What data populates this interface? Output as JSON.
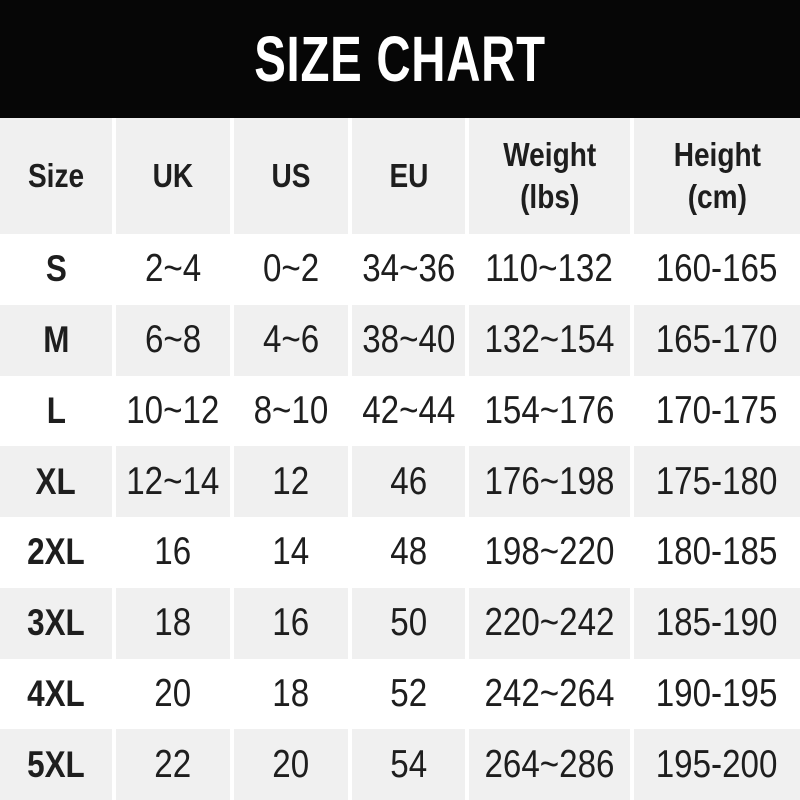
{
  "title": "SIZE CHART",
  "colors": {
    "title_bar_bg": "#060606",
    "title_text": "#ffffff",
    "row_gray": "#f0f0f0",
    "row_white": "#ffffff",
    "cell_text": "#1e1e1e",
    "column_separator": "#ffffff"
  },
  "chart_data": {
    "type": "table",
    "title": "SIZE CHART",
    "columns": [
      "Size",
      "UK",
      "US",
      "EU",
      "Weight (lbs)",
      "Height (cm)"
    ],
    "column_header_lines": [
      [
        "Size"
      ],
      [
        "UK"
      ],
      [
        "US"
      ],
      [
        "EU"
      ],
      [
        "Weight",
        "(lbs)"
      ],
      [
        "Height",
        "(cm)"
      ]
    ],
    "column_keys": [
      "size",
      "uk",
      "us",
      "eu",
      "weight-lbs",
      "height-cm"
    ],
    "rows": [
      [
        "S",
        "2~4",
        "0~2",
        "34~36",
        "110~132",
        "160-165"
      ],
      [
        "M",
        "6~8",
        "4~6",
        "38~40",
        "132~154",
        "165-170"
      ],
      [
        "L",
        "10~12",
        "8~10",
        "42~44",
        "154~176",
        "170-175"
      ],
      [
        "XL",
        "12~14",
        "12",
        "46",
        "176~198",
        "175-180"
      ],
      [
        "2XL",
        "16",
        "14",
        "48",
        "198~220",
        "180-185"
      ],
      [
        "3XL",
        "18",
        "16",
        "50",
        "220~242",
        "185-190"
      ],
      [
        "4XL",
        "20",
        "18",
        "52",
        "242~264",
        "190-195"
      ],
      [
        "5XL",
        "22",
        "20",
        "54",
        "264~286",
        "195-200"
      ]
    ]
  }
}
